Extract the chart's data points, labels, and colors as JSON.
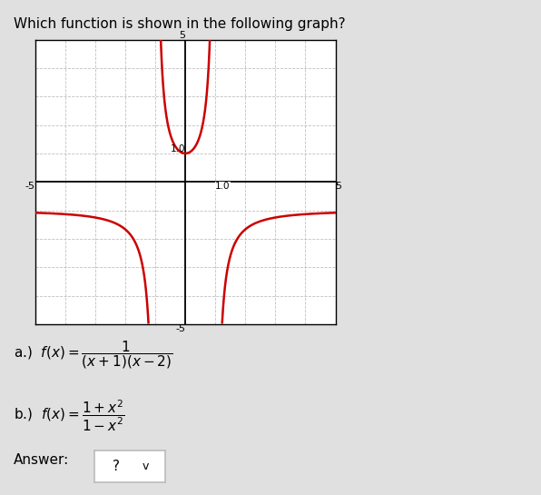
{
  "title": "Which function is shown in the following graph?",
  "xlim": [
    -5,
    5
  ],
  "ylim": [
    -5,
    5
  ],
  "curve_color": "#cc0000",
  "grid_color": "#b0b0b0",
  "plot_bg": "#ffffff",
  "outer_bg": "#e0e0e0",
  "content_bg": "#ffffff",
  "lw": 1.8,
  "label_1_0_x": "1.0",
  "label_1_0_y": "1.0",
  "label_5_top": "5",
  "label_5_bottom": "-5",
  "label_5_left": "-5",
  "label_5_right": "5",
  "option_a": "a.)  $f(x) = \\dfrac{1}{(x+1)(x-2)}$",
  "option_b": "b.)  $f(x) = \\dfrac{1+x^2}{1-x^2}$",
  "answer_text": "Answer:",
  "answer_val": "?",
  "fig_width": 5.96,
  "fig_height": 5.45,
  "dpi": 100
}
